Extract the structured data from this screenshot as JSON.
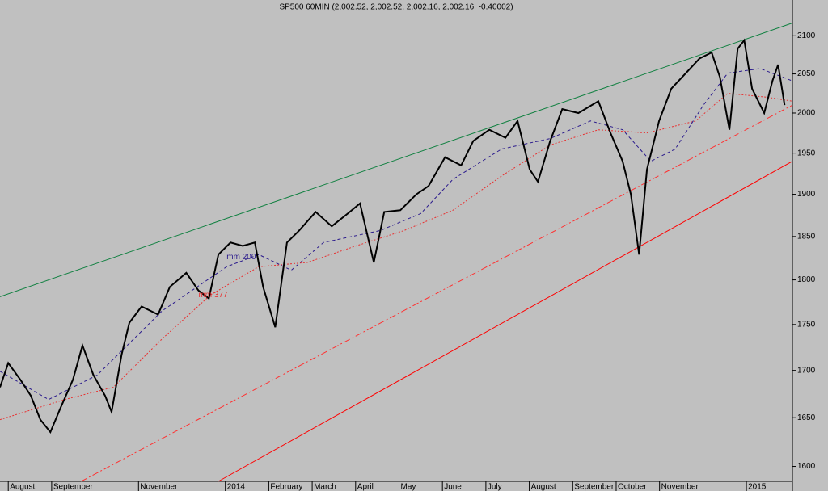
{
  "chart_data": {
    "type": "line",
    "title": "SP500 60MIN (2,002.52, 2,002.52, 2,002.16, 2,002.16, -0.40002)",
    "log_scale": true,
    "ylim": [
      1585,
      2148
    ],
    "yticks": [
      1600,
      1650,
      1700,
      1750,
      1800,
      1850,
      1900,
      1950,
      2000,
      2050,
      2100
    ],
    "xlim": [
      -0.19,
      18.06
    ],
    "xticks": [
      {
        "value": 0,
        "label": "August"
      },
      {
        "value": 1,
        "label": "September"
      },
      {
        "value": 3,
        "label": "November"
      },
      {
        "value": 5,
        "label": "2014"
      },
      {
        "value": 6,
        "label": "February"
      },
      {
        "value": 7,
        "label": "March"
      },
      {
        "value": 8,
        "label": "April"
      },
      {
        "value": 9,
        "label": "May"
      },
      {
        "value": 10,
        "label": "June"
      },
      {
        "value": 11,
        "label": "July"
      },
      {
        "value": 12,
        "label": "August"
      },
      {
        "value": 13,
        "label": "September"
      },
      {
        "value": 14,
        "label": "October"
      },
      {
        "value": 15,
        "label": "November"
      },
      {
        "value": 17,
        "label": "2015"
      }
    ],
    "series": [
      {
        "color": "#000000",
        "dash": "none",
        "width": 2,
        "x": [
          -0.19,
          0.0,
          0.28,
          0.52,
          0.74,
          0.97,
          1.21,
          1.49,
          1.71,
          1.96,
          2.23,
          2.38,
          2.61,
          2.79,
          3.07,
          3.45,
          3.72,
          4.1,
          4.38,
          4.62,
          4.84,
          5.12,
          5.4,
          5.68,
          5.87,
          6.15,
          6.42,
          6.7,
          7.08,
          7.45,
          7.82,
          8.1,
          8.42,
          8.66,
          9.03,
          9.4,
          9.68,
          10.06,
          10.43,
          10.71,
          11.08,
          11.45,
          11.73,
          12.01,
          12.2,
          12.48,
          12.76,
          13.13,
          13.59,
          13.87,
          14.15,
          14.34,
          14.53,
          14.71,
          14.99,
          15.27,
          15.64,
          15.92,
          16.2,
          16.39,
          16.61,
          16.8,
          16.95,
          17.13,
          17.41,
          17.6,
          17.73,
          17.88
        ],
        "values": [
          1682,
          1708,
          1690,
          1673,
          1648,
          1635,
          1661,
          1690,
          1727,
          1695,
          1673,
          1656,
          1717,
          1752,
          1770,
          1761,
          1792,
          1808,
          1788,
          1779,
          1829,
          1843,
          1839,
          1843,
          1792,
          1747,
          1843,
          1857,
          1879,
          1862,
          1877,
          1889,
          1820,
          1879,
          1881,
          1900,
          1910,
          1945,
          1935,
          1965,
          1979,
          1969,
          1990,
          1930,
          1915,
          1965,
          2005,
          2000,
          2015,
          1975,
          1940,
          1900,
          1829,
          1930,
          1990,
          2031,
          2053,
          2070,
          2078,
          2046,
          1979,
          2083,
          2094,
          2031,
          2000,
          2041,
          2062,
          2010
        ]
      },
      {
        "name": "mm 200",
        "color": "#2a1a8c",
        "dash": "4 3",
        "width": 1,
        "x": [
          -0.19,
          0.93,
          2.05,
          3.54,
          5.03,
          5.77,
          6.52,
          7.26,
          8.57,
          9.5,
          10.24,
          11.36,
          12.48,
          13.41,
          14.15,
          14.8,
          15.36,
          16.01,
          16.57,
          17.32,
          18.06
        ],
        "values": [
          1699,
          1669,
          1695,
          1765,
          1815,
          1829,
          1811,
          1843,
          1857,
          1877,
          1918,
          1955,
          1968,
          1990,
          1979,
          1940,
          1955,
          2010,
          2051,
          2057,
          2041
        ]
      },
      {
        "name": "mm 377",
        "color": "#e83030",
        "dash": "2 2",
        "width": 1,
        "x": [
          -0.19,
          1.3,
          2.42,
          3.54,
          4.66,
          5.77,
          6.89,
          8.01,
          9.12,
          10.24,
          11.36,
          12.48,
          13.59,
          14.71,
          15.83,
          16.57,
          17.5,
          18.06
        ],
        "values": [
          1648,
          1669,
          1682,
          1734,
          1783,
          1815,
          1820,
          1839,
          1857,
          1881,
          1922,
          1960,
          1979,
          1975,
          1990,
          2025,
          2020,
          2015
        ]
      },
      {
        "color": "#108040",
        "dash": "none",
        "width": 1,
        "x": [
          -0.19,
          18.06
        ],
        "values": [
          1781,
          2117
        ]
      },
      {
        "color": "#ff0000",
        "dash": "none",
        "width": 1,
        "x": [
          4.84,
          18.06
        ],
        "values": [
          1585,
          1940
        ]
      },
      {
        "color": "#ff3030",
        "dash": "8 3 2 3",
        "width": 1,
        "x": [
          1.68,
          18.06
        ],
        "values": [
          1585,
          2010
        ]
      }
    ]
  }
}
